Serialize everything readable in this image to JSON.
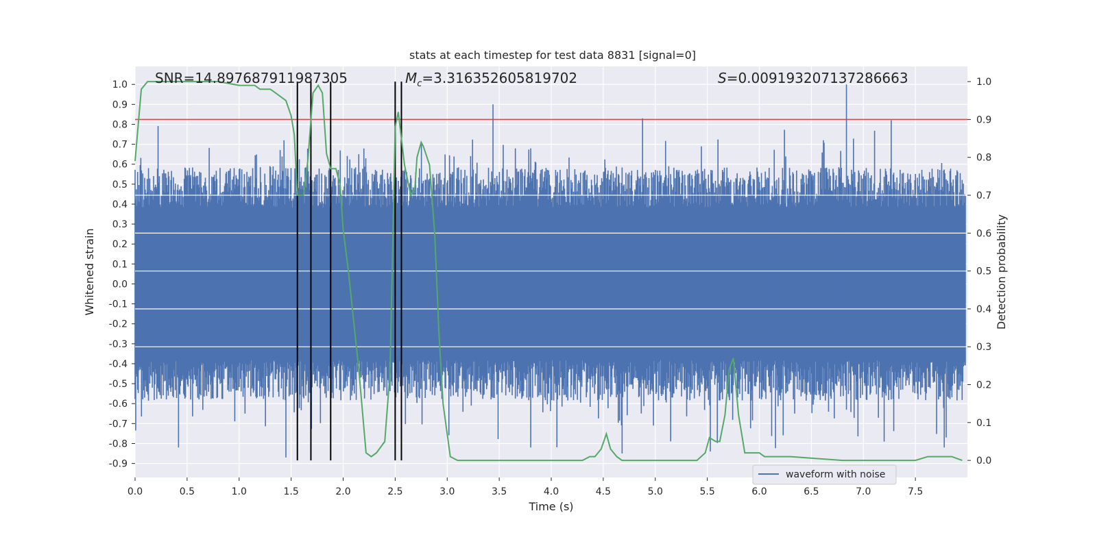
{
  "chart_data": {
    "type": "line",
    "title": "stats at each timestep for test data 8831 [signal=0]",
    "xlabel": "Time (s)",
    "ylabel": "Whitened strain",
    "y2label": "Detection probability",
    "xlim": [
      0.0,
      8.0
    ],
    "ylim": [
      -0.97,
      1.09
    ],
    "y2lim": [
      -0.045,
      1.04
    ],
    "x_ticks": [
      "0.0",
      "0.5",
      "1.0",
      "1.5",
      "2.0",
      "2.5",
      "3.0",
      "3.5",
      "4.0",
      "4.5",
      "5.0",
      "5.5",
      "6.0",
      "6.5",
      "7.0",
      "7.5"
    ],
    "y_ticks": [
      "1.0",
      "0.9",
      "0.8",
      "0.7",
      "0.6",
      "0.5",
      "0.4",
      "0.3",
      "0.2",
      "0.1",
      "0.0",
      "-0.1",
      "-0.2",
      "-0.3",
      "-0.4",
      "-0.5",
      "-0.6",
      "-0.7",
      "-0.8",
      "-0.9"
    ],
    "y2_ticks": [
      "1.0",
      "0.9",
      "0.8",
      "0.7",
      "0.6",
      "0.5",
      "0.4",
      "0.3",
      "0.2",
      "0.1",
      "0.0"
    ],
    "grid": true,
    "legend_position": "lower-right",
    "annotations": {
      "snr": "SNR=14.897687911987305",
      "mc_symbol": "M",
      "mc_sub": "c",
      "mc_value": "=3.316352605819702",
      "s_symbol": "S",
      "s_value": "=0.009193207137286663"
    },
    "colors": {
      "waveform": "#4c72b0",
      "probability": "#55a868",
      "threshold": "#c44e52",
      "vlines": "#000000",
      "background": "#eaeaf2",
      "grid": "#ffffff"
    },
    "series": [
      {
        "name": "waveform with noise",
        "note_type": "bar-like high frequency noise centered at 0",
        "envelope_top_typical": 0.45,
        "envelope_bottom_typical": -0.45,
        "peak_spikes": [
          [
            1.43,
            0.72
          ],
          [
            3.44,
            0.9
          ],
          [
            4.88,
            0.83
          ],
          [
            6.84,
            1.0
          ],
          [
            7.27,
            0.82
          ],
          [
            2.15,
            0.65
          ],
          [
            2.75,
            0.7
          ]
        ],
        "trough_spikes": [
          [
            0.42,
            -0.82
          ],
          [
            1.45,
            -0.87
          ],
          [
            3.8,
            -0.82
          ],
          [
            4.68,
            -0.85
          ],
          [
            5.53,
            -0.84
          ],
          [
            7.2,
            -0.79
          ],
          [
            7.78,
            -0.82
          ]
        ]
      },
      {
        "name": "",
        "axis": "right",
        "x": [
          0.0,
          0.06,
          0.12,
          0.2,
          0.4,
          0.6,
          0.8,
          1.0,
          1.1,
          1.15,
          1.2,
          1.3,
          1.35,
          1.4,
          1.45,
          1.5,
          1.53,
          1.56,
          1.62,
          1.66,
          1.71,
          1.76,
          1.8,
          1.84,
          1.88,
          1.93,
          1.97,
          2.0,
          2.05,
          2.1,
          2.15,
          2.22,
          2.27,
          2.32,
          2.4,
          2.45,
          2.5,
          2.53,
          2.59,
          2.65,
          2.69,
          2.71,
          2.75,
          2.77,
          2.83,
          2.88,
          2.92,
          2.96,
          3.03,
          3.1,
          3.3,
          3.7,
          4.0,
          4.3,
          4.37,
          4.42,
          4.48,
          4.53,
          4.57,
          4.63,
          4.68,
          4.75,
          5.0,
          5.2,
          5.4,
          5.48,
          5.52,
          5.58,
          5.62,
          5.67,
          5.71,
          5.75,
          5.8,
          5.86,
          5.92,
          5.95,
          6.0,
          6.05,
          6.1,
          6.3,
          6.8,
          7.2,
          7.5,
          7.62,
          7.72,
          7.85,
          7.95
        ],
        "y": [
          0.79,
          0.98,
          1.0,
          1.0,
          1.0,
          1.0,
          1.0,
          0.99,
          0.99,
          0.99,
          0.98,
          0.98,
          0.97,
          0.96,
          0.95,
          0.91,
          0.86,
          0.7,
          0.7,
          0.79,
          0.97,
          0.99,
          0.97,
          0.81,
          0.77,
          0.77,
          0.73,
          0.61,
          0.5,
          0.37,
          0.24,
          0.02,
          0.01,
          0.02,
          0.05,
          0.23,
          0.88,
          0.92,
          0.78,
          0.7,
          0.72,
          0.8,
          0.84,
          0.83,
          0.78,
          0.6,
          0.34,
          0.15,
          0.01,
          0.0,
          0.0,
          0.0,
          0.0,
          0.0,
          0.01,
          0.01,
          0.03,
          0.07,
          0.03,
          0.01,
          0.0,
          0.0,
          0.0,
          0.0,
          0.0,
          0.02,
          0.06,
          0.05,
          0.05,
          0.12,
          0.24,
          0.27,
          0.12,
          0.02,
          0.02,
          0.02,
          0.02,
          0.01,
          0.01,
          0.01,
          0.0,
          0.0,
          0.0,
          0.01,
          0.01,
          0.01,
          0.0
        ]
      }
    ],
    "threshold_y2": 0.9,
    "vertical_lines_x": [
      1.56,
      1.69,
      1.88,
      2.5,
      2.56
    ]
  }
}
